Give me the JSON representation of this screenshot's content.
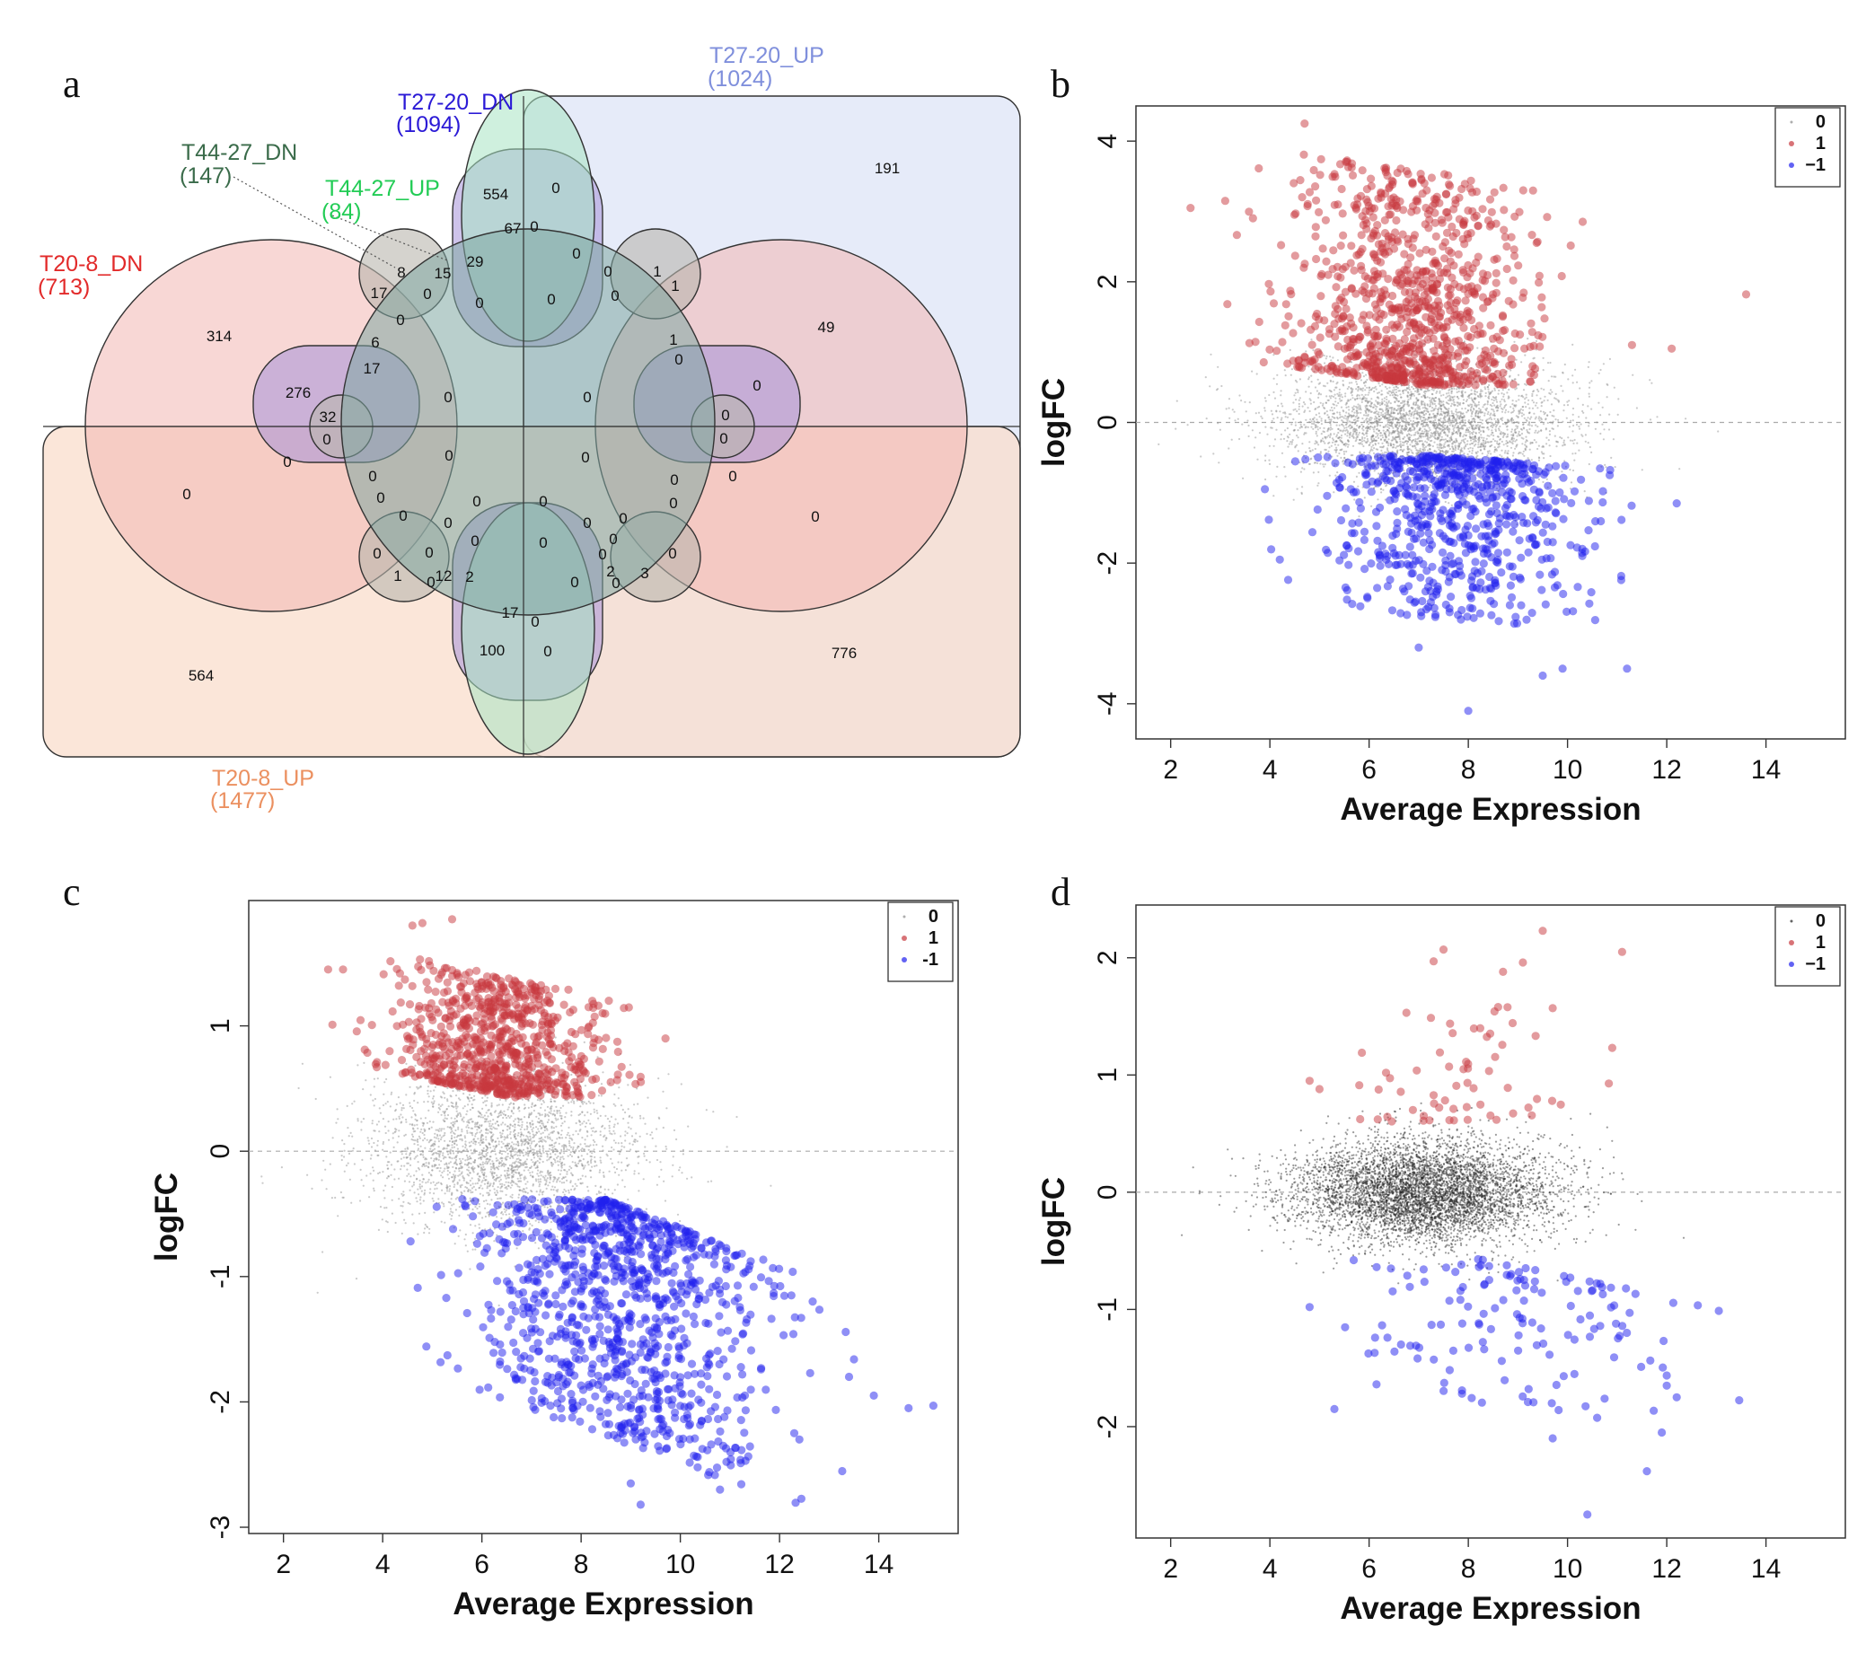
{
  "panels": {
    "a": "a",
    "b": "b",
    "c": "c",
    "d": "d"
  },
  "venn": {
    "sets": [
      {
        "key": "t27_20_up",
        "name": "T27-20_UP",
        "count": "(1024)",
        "color": "#7f8fdc",
        "fill": "#dde4f7"
      },
      {
        "key": "t27_20_dn",
        "name": "T27-20_DN",
        "count": "(1094)",
        "color": "#2b1ad6",
        "fill": "#a592d8"
      },
      {
        "key": "t44_27_dn",
        "name": "T44-27_DN",
        "count": "(147)",
        "color": "#3a6b4a",
        "fill": "#b9b6ad"
      },
      {
        "key": "t44_27_up",
        "name": "T44-27_UP",
        "count": "(84)",
        "color": "#22cc55",
        "fill": "#a8e3c2"
      },
      {
        "key": "t20_8_dn",
        "name": "T20-8_DN",
        "count": "(713)",
        "color": "#e22a2a",
        "fill": "#f2b7b2"
      },
      {
        "key": "t20_8_up",
        "name": "T20-8_UP",
        "count": "(1477)",
        "color": "#eb9060",
        "fill": "#f9ddcc"
      }
    ],
    "region_values": [
      "191",
      "554",
      "0",
      "67",
      "0",
      "29",
      "8",
      "15",
      "17",
      "0",
      "0",
      "0",
      "0",
      "0",
      "1",
      "1",
      "0",
      "314",
      "49",
      "0",
      "6",
      "17",
      "1",
      "0",
      "276",
      "0",
      "0",
      "32",
      "0",
      "0",
      "0",
      "0",
      "0",
      "0",
      "0",
      "0",
      "0",
      "0",
      "0",
      "0",
      "0",
      "0",
      "0",
      "0",
      "0",
      "0",
      "0",
      "0",
      "0",
      "0",
      "0",
      "0",
      "0",
      "0",
      "0",
      "0",
      "0",
      "0",
      "1",
      "12",
      "2",
      "2",
      "3",
      "17",
      "0",
      "100",
      "0",
      "564",
      "776"
    ]
  },
  "chart_data": [
    {
      "panel": "b",
      "type": "scatter",
      "title": "",
      "xlabel": "Average Expression",
      "ylabel": "logFC",
      "xlim": [
        1.3,
        15.6
      ],
      "ylim": [
        -4.5,
        4.5
      ],
      "xticks": [
        2,
        4,
        6,
        8,
        10,
        12,
        14
      ],
      "yticks": [
        -4,
        -2,
        0,
        2,
        4
      ],
      "legend": {
        "position": "top-right",
        "entries": [
          "0",
          "1",
          "−1"
        ]
      },
      "series": [
        {
          "name": "0",
          "color": "#8a8a8a",
          "n": 3600,
          "x_mean": 7.1,
          "x_sd": 1.5,
          "y_sd": 0.42
        },
        {
          "name": "1",
          "color": "#c8383d",
          "n": 1000,
          "x_mean": 6.9,
          "x_sd": 1.2,
          "y_min": 0.55,
          "y_max": 3.6,
          "slope": -0.1,
          "points": [
            [
              2.4,
              3.05
            ],
            [
              3.1,
              3.15
            ],
            [
              4.7,
              4.25
            ],
            [
              13.6,
              1.82
            ],
            [
              11.3,
              1.1
            ],
            [
              12.1,
              1.05
            ]
          ]
        },
        {
          "name": "−1",
          "color": "#2020ee",
          "n": 700,
          "x_mean": 7.7,
          "x_sd": 1.3,
          "y_min": -2.8,
          "y_max": -0.5,
          "slope": -0.05,
          "points": [
            [
              4.2,
              -1.95
            ],
            [
              3.9,
              -0.95
            ],
            [
              12.2,
              -1.15
            ],
            [
              8.0,
              -4.1
            ],
            [
              9.5,
              -3.6
            ],
            [
              9.9,
              -3.5
            ],
            [
              11.2,
              -3.5
            ],
            [
              7.0,
              -3.2
            ]
          ]
        }
      ]
    },
    {
      "panel": "c",
      "type": "scatter",
      "title": "",
      "xlabel": "Average Expression",
      "ylabel": "logFC",
      "xlim": [
        1.3,
        15.6
      ],
      "ylim": [
        -3.05,
        2.0
      ],
      "xticks": [
        2,
        4,
        6,
        8,
        10,
        12,
        14
      ],
      "yticks": [
        -3,
        -2,
        -1,
        0,
        1
      ],
      "legend": {
        "position": "top-right",
        "entries": [
          "0",
          "1",
          "-1"
        ]
      },
      "series": [
        {
          "name": "0",
          "color": "#8a8a8a",
          "n": 2600,
          "x_mean": 6.4,
          "x_sd": 1.4,
          "y_sd": 0.3
        },
        {
          "name": "1",
          "color": "#c8383d",
          "n": 850,
          "x_mean": 6.4,
          "x_sd": 1.1,
          "y_min": 0.45,
          "y_max": 1.4,
          "slope": -0.08,
          "points": [
            [
              2.9,
              1.45
            ],
            [
              3.2,
              1.45
            ],
            [
              4.6,
              1.8
            ],
            [
              4.8,
              1.82
            ],
            [
              5.4,
              1.85
            ],
            [
              9.7,
              0.9
            ]
          ]
        },
        {
          "name": "-1",
          "color": "#2020ee",
          "n": 1200,
          "x_mean": 8.6,
          "x_sd": 1.5,
          "y_min": -2.3,
          "y_max": -0.4,
          "slope": -0.15,
          "points": [
            [
              15.1,
              -2.03
            ],
            [
              14.6,
              -2.05
            ],
            [
              13.9,
              -1.95
            ],
            [
              13.4,
              -1.8
            ],
            [
              13.5,
              -1.66
            ],
            [
              9.2,
              -2.82
            ],
            [
              9.0,
              -2.65
            ],
            [
              10.8,
              -2.7
            ],
            [
              12.4,
              -2.3
            ]
          ]
        }
      ]
    },
    {
      "panel": "d",
      "type": "scatter",
      "title": "",
      "xlabel": "Average Expression",
      "ylabel": "logFC",
      "xlim": [
        1.3,
        15.6
      ],
      "ylim": [
        -2.95,
        2.45
      ],
      "xticks": [
        2,
        4,
        6,
        8,
        10,
        12,
        14
      ],
      "yticks": [
        -2,
        -1,
        0,
        1,
        2
      ],
      "legend": {
        "position": "top-right",
        "entries": [
          "0",
          "1",
          "−1"
        ]
      },
      "series": [
        {
          "name": "0",
          "color": "#222222",
          "n": 5500,
          "x_mean": 7.1,
          "x_sd": 1.3,
          "y_sd": 0.22
        },
        {
          "name": "1",
          "color": "#c8383d",
          "n": 60,
          "x_mean": 7.9,
          "x_sd": 1.1,
          "y_min": 0.6,
          "y_max": 1.6,
          "slope": 0,
          "points": [
            [
              9.5,
              2.23
            ],
            [
              7.3,
              1.97
            ],
            [
              7.5,
              2.07
            ],
            [
              8.7,
              1.88
            ],
            [
              9.1,
              1.96
            ],
            [
              11.1,
              2.05
            ],
            [
              8.6,
              1.58
            ],
            [
              9.7,
              1.57
            ],
            [
              4.8,
              0.95
            ],
            [
              5.0,
              0.88
            ]
          ]
        },
        {
          "name": "−1",
          "color": "#2020ee",
          "n": 150,
          "x_mean": 8.6,
          "x_sd": 1.6,
          "y_min": -1.9,
          "y_max": -0.6,
          "slope": -0.08,
          "points": [
            [
              10.4,
              -2.75
            ],
            [
              11.6,
              -2.38
            ],
            [
              12.2,
              -1.75
            ],
            [
              12.0,
              -1.65
            ],
            [
              11.9,
              -2.05
            ],
            [
              5.3,
              -1.85
            ],
            [
              4.8,
              -0.98
            ],
            [
              9.7,
              -2.1
            ]
          ]
        }
      ]
    }
  ]
}
